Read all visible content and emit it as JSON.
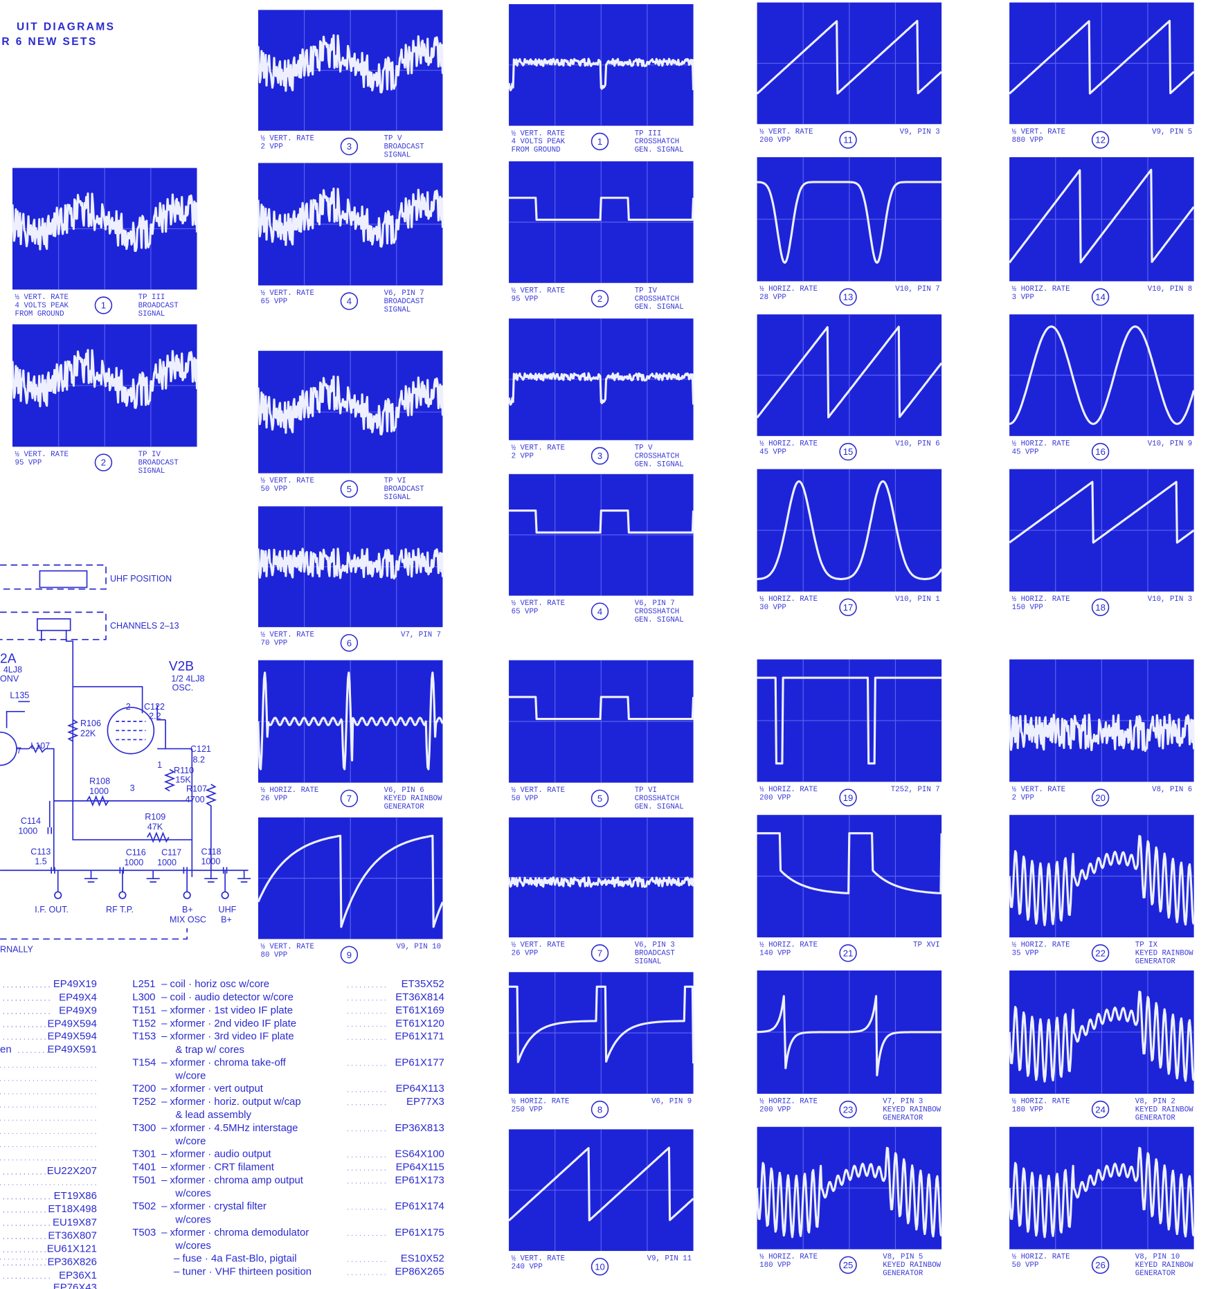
{
  "header": {
    "lines": [
      "UIT DIAGRAMS",
      "R 6 NEW SETS"
    ]
  },
  "scope_columns": [
    {
      "panels": [
        {
          "rate": "½ VERT. RATE",
          "level": [
            "4 VOLTS PEAK",
            "FROM GROUND"
          ],
          "number": "1",
          "label": [
            "TP III",
            "BROADCAST",
            "SIGNAL"
          ]
        },
        {
          "rate": "½ VERT. RATE",
          "level": [
            "95 VPP"
          ],
          "number": "2",
          "label": [
            "TP IV",
            "BROADCAST",
            "SIGNAL"
          ]
        }
      ]
    },
    {
      "panels": [
        {
          "rate": "½ VERT. RATE",
          "level": [
            "2 VPP"
          ],
          "number": "3",
          "label": [
            "TP V",
            "BROADCAST",
            "SIGNAL"
          ]
        },
        {
          "rate": "½ VERT. RATE",
          "level": [
            "65 VPP"
          ],
          "number": "4",
          "label": [
            "V6, PIN 7",
            "BROADCAST",
            "SIGNAL"
          ]
        },
        {
          "rate": "½ VERT. RATE",
          "level": [
            "50 VPP"
          ],
          "number": "5",
          "label": [
            "TP VI",
            "BROADCAST",
            "SIGNAL"
          ]
        },
        {
          "rate": "½ VERT. RATE",
          "level": [
            "70 VPP"
          ],
          "number": "6",
          "label": [
            "V7, PIN 7"
          ]
        },
        {
          "rate": "½ HORIZ. RATE",
          "level": [
            "26 VPP"
          ],
          "number": "7",
          "label": [
            "V6, PIN 6",
            "KEYED RAINBOW",
            "GENERATOR"
          ]
        },
        {
          "rate": "½ VERT. RATE",
          "level": [
            "80 VPP"
          ],
          "number": "9",
          "label": [
            "V9, PIN 10"
          ]
        }
      ]
    },
    {
      "panels": [
        {
          "rate": "½ VERT. RATE",
          "level": [
            "4 VOLTS PEAK",
            "FROM GROUND"
          ],
          "number": "1",
          "label": [
            "TP III",
            "CROSSHATCH",
            "GEN. SIGNAL"
          ]
        },
        {
          "rate": "½ VERT. RATE",
          "level": [
            "95 VPP"
          ],
          "number": "2",
          "label": [
            "TP IV",
            "CROSSHATCH",
            "GEN. SIGNAL"
          ]
        },
        {
          "rate": "½ VERT. RATE",
          "level": [
            "2 VPP"
          ],
          "number": "3",
          "label": [
            "TP V",
            "CROSSHATCH",
            "GEN. SIGNAL"
          ]
        },
        {
          "rate": "½ VERT. RATE",
          "level": [
            "65 VPP"
          ],
          "number": "4",
          "label": [
            "V6, PIN 7",
            "CROSSHATCH",
            "GEN. SIGNAL"
          ]
        },
        {
          "rate": "½ VERT. RATE",
          "level": [
            "50 VPP"
          ],
          "number": "5",
          "label": [
            "TP VI",
            "CROSSHATCH",
            "GEN. SIGNAL"
          ]
        },
        {
          "rate": "½ VERT. RATE",
          "level": [
            "26 VPP"
          ],
          "number": "7",
          "label": [
            "V6, PIN 3",
            "BROADCAST",
            "SIGNAL"
          ]
        },
        {
          "rate": "½ HORIZ. RATE",
          "level": [
            "250 VPP"
          ],
          "number": "8",
          "label": [
            "V6, PIN 9"
          ]
        },
        {
          "rate": "½ VERT. RATE",
          "level": [
            "240 VPP"
          ],
          "number": "10",
          "label": [
            "V9, PIN 11"
          ]
        }
      ]
    },
    {
      "panels": [
        {
          "rate": "½ VERT. RATE",
          "level": [
            "200 VPP"
          ],
          "number": "11",
          "label": [
            "V9, PIN 3"
          ]
        },
        {
          "rate": "½ HORIZ. RATE",
          "level": [
            "28 VPP"
          ],
          "number": "13",
          "label": [
            "V10, PIN 7"
          ]
        },
        {
          "rate": "½ HORIZ. RATE",
          "level": [
            "45 VPP"
          ],
          "number": "15",
          "label": [
            "V10, PIN 6"
          ]
        },
        {
          "rate": "½ HORIZ. RATE",
          "level": [
            "30 VPP"
          ],
          "number": "17",
          "label": [
            "V10, PIN 1"
          ]
        },
        {
          "rate": "½ HORIZ. RATE",
          "level": [
            "200 VPP"
          ],
          "number": "19",
          "label": [
            "T252, PIN 7"
          ]
        },
        {
          "rate": "½ HORIZ. RATE",
          "level": [
            "140 VPP"
          ],
          "number": "21",
          "label": [
            "TP XVI"
          ]
        },
        {
          "rate": "½ HORIZ. RATE",
          "level": [
            "200 VPP"
          ],
          "number": "23",
          "label": [
            "V7, PIN 3",
            "KEYED RAINBOW",
            "GENERATOR"
          ]
        },
        {
          "rate": "½ HORIZ. RATE",
          "level": [
            "180 VPP"
          ],
          "number": "25",
          "label": [
            "V8, PIN 5",
            "KEYED RAINBOW",
            "GENERATOR"
          ]
        }
      ]
    },
    {
      "panels": [
        {
          "rate": "½ VERT. RATE",
          "level": [
            "880 VPP"
          ],
          "number": "12",
          "label": [
            "V9, PIN 5"
          ]
        },
        {
          "rate": "½ HORIZ. RATE",
          "level": [
            "3 VPP"
          ],
          "number": "14",
          "label": [
            "V10, PIN 8"
          ]
        },
        {
          "rate": "½ HORIZ. RATE",
          "level": [
            "45 VPP"
          ],
          "number": "16",
          "label": [
            "V10, PIN 9"
          ]
        },
        {
          "rate": "½ HORIZ. RATE",
          "level": [
            "150 VPP"
          ],
          "number": "18",
          "label": [
            "V10, PIN 3"
          ]
        },
        {
          "rate": "½ VERT. RATE",
          "level": [
            "2 VPP"
          ],
          "number": "20",
          "label": [
            "V8, PIN 6"
          ]
        },
        {
          "rate": "½ HORIZ. RATE",
          "level": [
            "35 VPP"
          ],
          "number": "22",
          "label": [
            "TP IX",
            "KEYED RAINBOW",
            "GENERATOR"
          ]
        },
        {
          "rate": "½ HORIZ. RATE",
          "level": [
            "180 VPP"
          ],
          "number": "24",
          "label": [
            "V8, PIN 2",
            "KEYED RAINBOW",
            "GENERATOR"
          ]
        },
        {
          "rate": "½ HORIZ. RATE",
          "level": [
            "50 VPP"
          ],
          "number": "26",
          "label": [
            "V8, PIN 10",
            "KEYED RAINBOW",
            "GENERATOR"
          ]
        }
      ]
    }
  ],
  "schematic": {
    "labels": [
      "UHF POSITION",
      "CHANNELS 2–13",
      "2A",
      "4LJ8",
      "ONV",
      "V2B",
      "1/2 4LJ8",
      "OSC.",
      "L135",
      "7",
      "L107",
      "R106",
      "22K",
      "C122",
      "2.2",
      "2",
      "C121",
      "8.2",
      "R108",
      "1000",
      "3",
      "R110",
      "15K",
      "1",
      "R107",
      "4700",
      "R109",
      "47K",
      "C114",
      "1000",
      "C113",
      "1.5",
      "C116",
      "1000",
      "C117",
      "1000",
      "C118",
      "1000",
      "I.F. OUT.",
      "RF T.P.",
      "B+",
      "MIX OSC",
      "UHF",
      "B+",
      "RNALLY"
    ]
  },
  "parts_left": [
    {
      "part": "EP49X19"
    },
    {
      "part": "EP49X4"
    },
    {
      "part": "EP49X9"
    },
    {
      "part": "EP49X594"
    },
    {
      "part": "EP49X594"
    },
    {
      "prefix": "en",
      "part": "EP49X591"
    },
    {
      "part": "EU22X207"
    },
    {
      "part": "ET19X86"
    },
    {
      "part": "ET18X498"
    },
    {
      "part": "EU19X87"
    },
    {
      "part": "ET36X807"
    },
    {
      "part": "EU61X121"
    },
    {
      "part": "EP36X826"
    },
    {
      "part": "EP36X1"
    },
    {
      "part": "EP76X43"
    }
  ],
  "parts_right": [
    {
      "ref": "L251",
      "desc": [
        "– coil · horiz osc w/core"
      ],
      "part": "ET35X52"
    },
    {
      "ref": "L300",
      "desc": [
        "– coil · audio detector w/core"
      ],
      "part": "ET36X814"
    },
    {
      "ref": "T151",
      "desc": [
        "– xformer · 1st video IF plate"
      ],
      "part": "ET61X169"
    },
    {
      "ref": "T152",
      "desc": [
        "– xformer · 2nd video IF plate"
      ],
      "part": "ET61X120"
    },
    {
      "ref": "T153",
      "desc": [
        "– xformer · 3rd video IF plate",
        "& trap w/ cores"
      ],
      "part": "EP61X171"
    },
    {
      "ref": "T154",
      "desc": [
        "– xformer · chroma take-off",
        "w/core"
      ],
      "part": "EP61X177"
    },
    {
      "ref": "T200",
      "desc": [
        "– xformer · vert output"
      ],
      "part": "EP64X113"
    },
    {
      "ref": "T252",
      "desc": [
        "– xformer · horiz. output w/cap",
        "& lead assembly"
      ],
      "part": "EP77X3"
    },
    {
      "ref": "T300",
      "desc": [
        "– xformer · 4.5MHz interstage",
        "w/core"
      ],
      "part": "EP36X813"
    },
    {
      "ref": "T301",
      "desc": [
        "– xformer · audio output"
      ],
      "part": "ES64X100"
    },
    {
      "ref": "T401",
      "desc": [
        "– xformer · CRT filament"
      ],
      "part": "EP64X115"
    },
    {
      "ref": "T501",
      "desc": [
        "– xformer · chroma amp output",
        "w/cores"
      ],
      "part": "EP61X173"
    },
    {
      "ref": "T502",
      "desc": [
        "– xformer · crystal filter",
        "w/cores"
      ],
      "part": "EP61X174"
    },
    {
      "ref": "T503",
      "desc": [
        "– xformer · chroma demodulator",
        "w/cores"
      ],
      "part": "EP61X175"
    },
    {
      "desc": [
        "– fuse · 4a Fast-Blo, pigtail"
      ],
      "part": "ES10X52"
    },
    {
      "desc": [
        "– tuner · VHF thirteen position"
      ],
      "part": "EP86X265"
    }
  ]
}
